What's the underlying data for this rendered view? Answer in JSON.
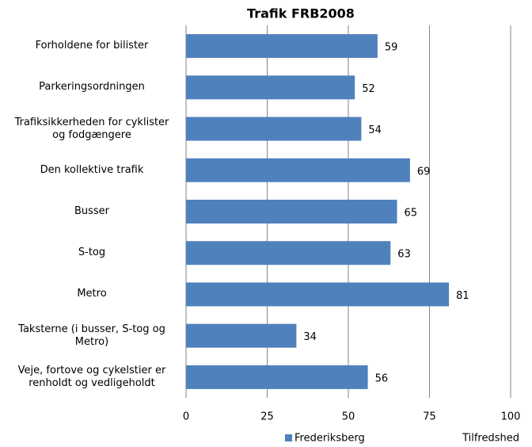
{
  "chart_data": {
    "type": "bar",
    "orientation": "horizontal",
    "title": "Trafik FRB2008",
    "categories": [
      "Forholdene for bilister",
      "Parkeringsordningen",
      "Trafiksikkerheden for cyklister\nog fodgængere",
      "Den kollektive trafik",
      "Busser",
      "S-tog",
      "Metro",
      "Taksterne (i busser, S-tog og\nMetro)",
      "Veje, fortove og cykelstier er\nrenholdt og vedligeholdt"
    ],
    "series": [
      {
        "name": "Frederiksberg",
        "color": "#4f81bd",
        "values": [
          59,
          52,
          54,
          69,
          65,
          63,
          81,
          34,
          56
        ]
      }
    ],
    "xlabel": "Tilfredshed",
    "xlim": [
      0,
      100
    ],
    "xticks": [
      0,
      25,
      50,
      75,
      100
    ],
    "grid": true,
    "legend": "bottom"
  }
}
